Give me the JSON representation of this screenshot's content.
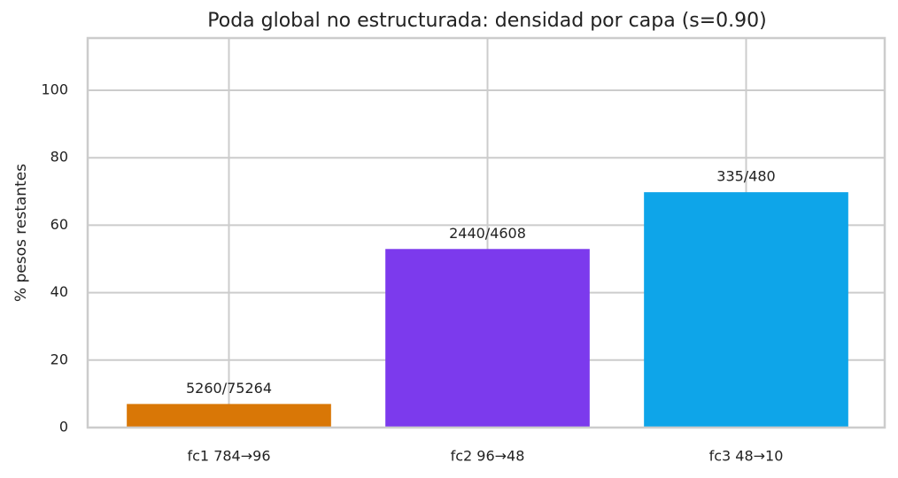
{
  "chart_data": {
    "type": "bar",
    "title": "Poda global no estructurada: densidad por capa (s=0.90)",
    "y_label": "% pesos restantes",
    "categories": [
      "fc1 784→96",
      "fc2 96→48",
      "fc3 48→10"
    ],
    "values": [
      6.99,
      52.95,
      69.79
    ],
    "value_labels": [
      "5260/75264",
      "2440/4608",
      "335/480"
    ],
    "colors": [
      "#d97706",
      "#7c3aed",
      "#0ea5e9"
    ],
    "ylim": [
      0,
      115.5
    ],
    "yticks": [
      0,
      20,
      40,
      60,
      80,
      100
    ],
    "grid": true
  }
}
